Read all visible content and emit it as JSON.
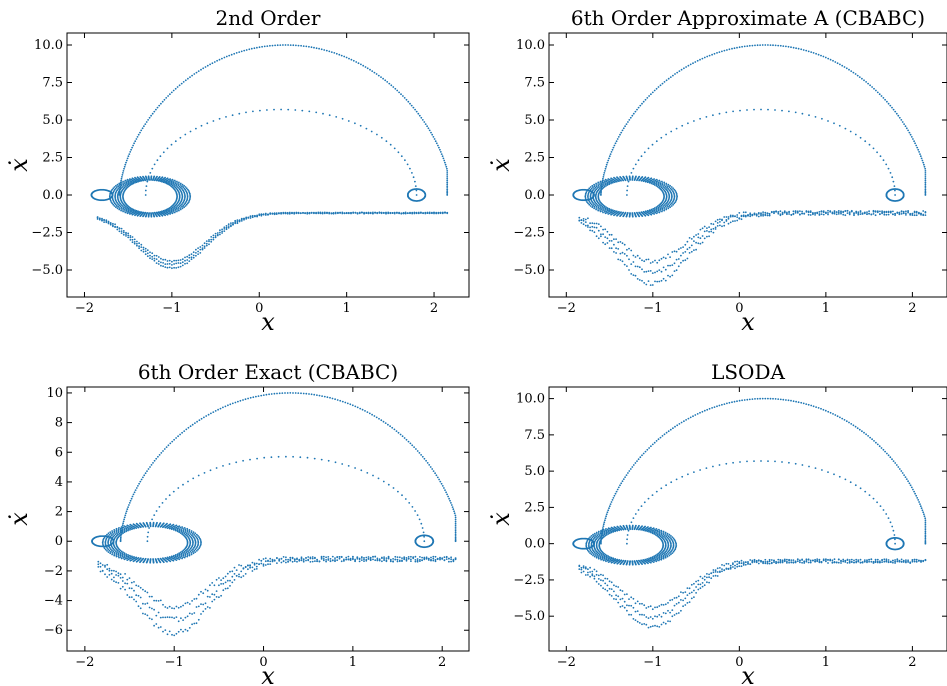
{
  "chart_data": [
    {
      "type": "scatter",
      "title": "2nd Order",
      "xlabel": "x",
      "ylabel": "ẋ",
      "xlim": [
        -2.2,
        2.4
      ],
      "ylim": [
        -6.8,
        10.8
      ],
      "xticks": [
        -2,
        -1,
        0,
        1,
        2
      ],
      "xtick_labels": [
        "−2",
        "−1",
        "0",
        "1",
        "2"
      ],
      "yticks": [
        -5,
        -2.5,
        0,
        2.5,
        5,
        7.5,
        10
      ],
      "ytick_labels": [
        "−5.0",
        "−2.5",
        "0.0",
        "2.5",
        "5.0",
        "7.5",
        "10.0"
      ],
      "color": "#1f77b4",
      "series": [
        {
          "x": [
            -1.8,
            -1.25,
            1.0,
            2.15,
            1.8,
            -1.0
          ],
          "y": [
            0.0,
            0.0,
            10.0,
            0.0,
            0.0,
            -4.2
          ]
        }
      ],
      "trajectory_spread": 0.15
    },
    {
      "type": "scatter",
      "title": "6th Order Approximate A (CBABC)",
      "xlabel": "x",
      "ylabel": "ẋ",
      "xlim": [
        -2.2,
        2.4
      ],
      "ylim": [
        -6.8,
        10.8
      ],
      "xticks": [
        -2,
        -1,
        0,
        1,
        2
      ],
      "xtick_labels": [
        "−2",
        "−1",
        "0",
        "1",
        "2"
      ],
      "yticks": [
        -5,
        -2.5,
        0,
        2.5,
        5,
        7.5,
        10
      ],
      "ytick_labels": [
        "−5.0",
        "−2.5",
        "0.0",
        "2.5",
        "5.0",
        "7.5",
        "10.0"
      ],
      "color": "#1f77b4",
      "series": [
        {
          "x": [
            -1.8,
            -1.3,
            1.0,
            2.15,
            1.8,
            -1.0
          ],
          "y": [
            0.0,
            0.0,
            9.9,
            0.0,
            0.0,
            -4.2
          ]
        }
      ],
      "trajectory_spread": 0.5
    },
    {
      "type": "scatter",
      "title": "6th Order Exact (CBABC)",
      "xlabel": "x",
      "ylabel": "ẋ",
      "xlim": [
        -2.2,
        2.3
      ],
      "ylim": [
        -7.4,
        10.4
      ],
      "xticks": [
        -2,
        -1,
        0,
        1,
        2
      ],
      "xtick_labels": [
        "−2",
        "−1",
        "0",
        "1",
        "2"
      ],
      "yticks": [
        -6,
        -4,
        -2,
        0,
        2,
        4,
        6,
        8,
        10
      ],
      "ytick_labels": [
        "−6",
        "−4",
        "−2",
        "0",
        "2",
        "4",
        "6",
        "8",
        "10"
      ],
      "color": "#1f77b4",
      "series": [
        {
          "x": [
            -1.8,
            -1.3,
            1.0,
            2.15,
            1.8,
            -1.0
          ],
          "y": [
            0.0,
            0.0,
            9.9,
            0.0,
            0.0,
            -4.2
          ]
        }
      ],
      "trajectory_spread": 0.6
    },
    {
      "type": "scatter",
      "title": "LSODA",
      "xlabel": "x",
      "ylabel": "ẋ",
      "xlim": [
        -2.2,
        2.4
      ],
      "ylim": [
        -7.4,
        10.8
      ],
      "xticks": [
        -2,
        -1,
        0,
        1,
        2
      ],
      "xtick_labels": [
        "−2",
        "−1",
        "0",
        "1",
        "2"
      ],
      "yticks": [
        -5,
        -2.5,
        0,
        2.5,
        5,
        7.5,
        10
      ],
      "ytick_labels": [
        "−5.0",
        "−2.5",
        "0.0",
        "2.5",
        "5.0",
        "7.5",
        "10.0"
      ],
      "color": "#1f77b4",
      "series": [
        {
          "x": [
            -1.8,
            -1.3,
            1.0,
            2.15,
            1.8,
            -1.0
          ],
          "y": [
            0.0,
            0.0,
            9.9,
            0.0,
            0.0,
            -4.2
          ]
        }
      ],
      "trajectory_spread": 0.45
    }
  ]
}
